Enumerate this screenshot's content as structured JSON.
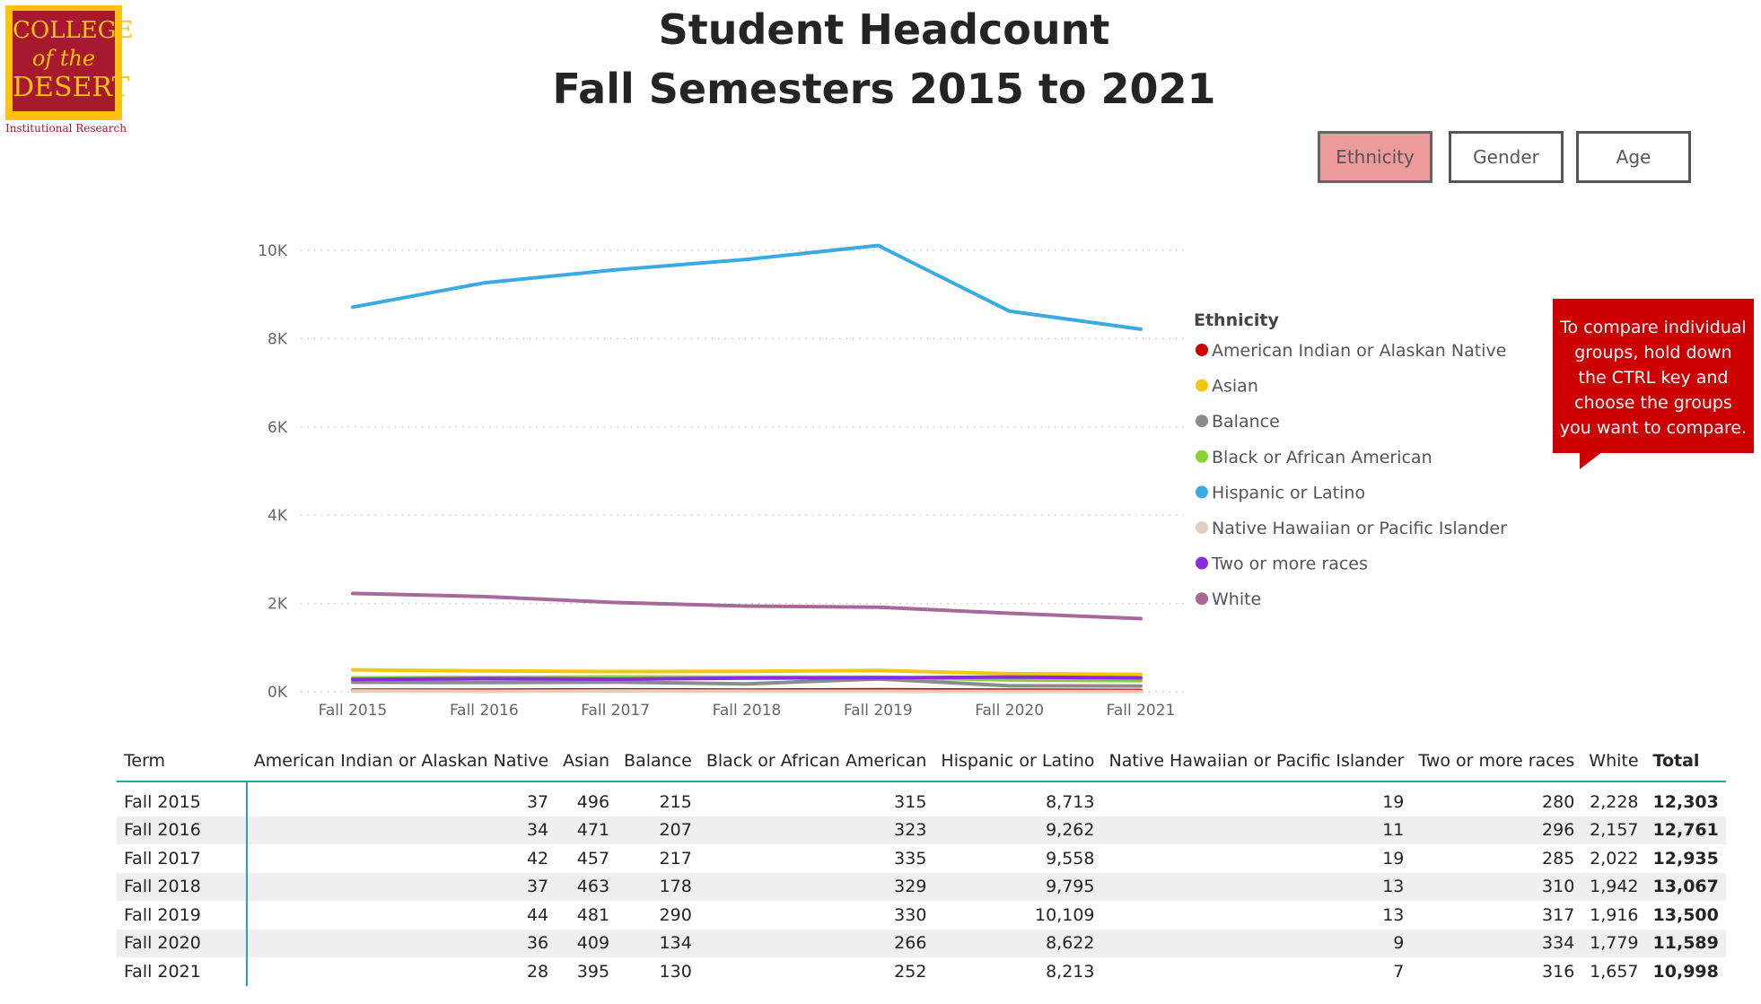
{
  "logo": {
    "line1": "COLLEGE",
    "line2": "of the",
    "line3": "DESERT",
    "subtitle": "Institutional Research"
  },
  "title": {
    "line1": "Student Headcount",
    "line2": "Fall Semesters 2015 to 2021"
  },
  "slicers": [
    {
      "label": "Ethnicity",
      "active": true
    },
    {
      "label": "Gender",
      "active": false
    },
    {
      "label": "Age",
      "active": false
    }
  ],
  "tooltip": "To compare individual groups, hold down the CTRL key and choose the groups you want to compare.",
  "chart_data": {
    "type": "line",
    "title": "",
    "xlabel": "",
    "ylabel": "",
    "x": [
      "Fall 2015",
      "Fall 2016",
      "Fall 2017",
      "Fall 2018",
      "Fall 2019",
      "Fall 2020",
      "Fall 2021"
    ],
    "ylim": [
      0,
      10000
    ],
    "yticks": [
      0,
      2000,
      4000,
      6000,
      8000,
      10000
    ],
    "ytick_labels": [
      "0K",
      "2K",
      "4K",
      "6K",
      "8K",
      "10K"
    ],
    "grid": true,
    "legend": {
      "title": "Ethnicity",
      "position": "right"
    },
    "series": [
      {
        "name": "American Indian or Alaskan Native",
        "color": "#cc0000",
        "values": [
          37,
          34,
          42,
          37,
          44,
          36,
          28
        ]
      },
      {
        "name": "Asian",
        "color": "#f2c80f",
        "values": [
          496,
          471,
          457,
          463,
          481,
          409,
          395
        ]
      },
      {
        "name": "Balance",
        "color": "#8c8c8c",
        "values": [
          215,
          207,
          217,
          178,
          290,
          134,
          130
        ]
      },
      {
        "name": "Black or African American",
        "color": "#8ad037",
        "values": [
          315,
          323,
          335,
          329,
          330,
          266,
          252
        ]
      },
      {
        "name": "Hispanic or Latino",
        "color": "#3aaae1",
        "values": [
          8713,
          9262,
          9558,
          9795,
          10109,
          8622,
          8213
        ]
      },
      {
        "name": "Native Hawaiian or Pacific Islander",
        "color": "#e5cfb8",
        "values": [
          19,
          11,
          19,
          13,
          13,
          9,
          7
        ]
      },
      {
        "name": "Two or more races",
        "color": "#8a2be2",
        "values": [
          280,
          296,
          285,
          310,
          317,
          334,
          316
        ]
      },
      {
        "name": "White",
        "color": "#a66999",
        "values": [
          2228,
          2157,
          2022,
          1942,
          1916,
          1779,
          1657
        ]
      }
    ]
  },
  "table": {
    "headers": [
      "Term",
      "American Indian or Alaskan Native",
      "Asian",
      "Balance",
      "Black or African American",
      "Hispanic or Latino",
      "Native Hawaiian or Pacific Islander",
      "Two or more races",
      "White",
      "Total"
    ],
    "rows": [
      [
        "Fall 2015",
        "37",
        "496",
        "215",
        "315",
        "8,713",
        "19",
        "280",
        "2,228",
        "12,303"
      ],
      [
        "Fall 2016",
        "34",
        "471",
        "207",
        "323",
        "9,262",
        "11",
        "296",
        "2,157",
        "12,761"
      ],
      [
        "Fall 2017",
        "42",
        "457",
        "217",
        "335",
        "9,558",
        "19",
        "285",
        "2,022",
        "12,935"
      ],
      [
        "Fall 2018",
        "37",
        "463",
        "178",
        "329",
        "9,795",
        "13",
        "310",
        "1,942",
        "13,067"
      ],
      [
        "Fall 2019",
        "44",
        "481",
        "290",
        "330",
        "10,109",
        "13",
        "317",
        "1,916",
        "13,500"
      ],
      [
        "Fall 2020",
        "36",
        "409",
        "134",
        "266",
        "8,622",
        "9",
        "334",
        "1,779",
        "11,589"
      ],
      [
        "Fall 2021",
        "28",
        "395",
        "130",
        "252",
        "8,213",
        "7",
        "316",
        "1,657",
        "10,998"
      ]
    ]
  }
}
